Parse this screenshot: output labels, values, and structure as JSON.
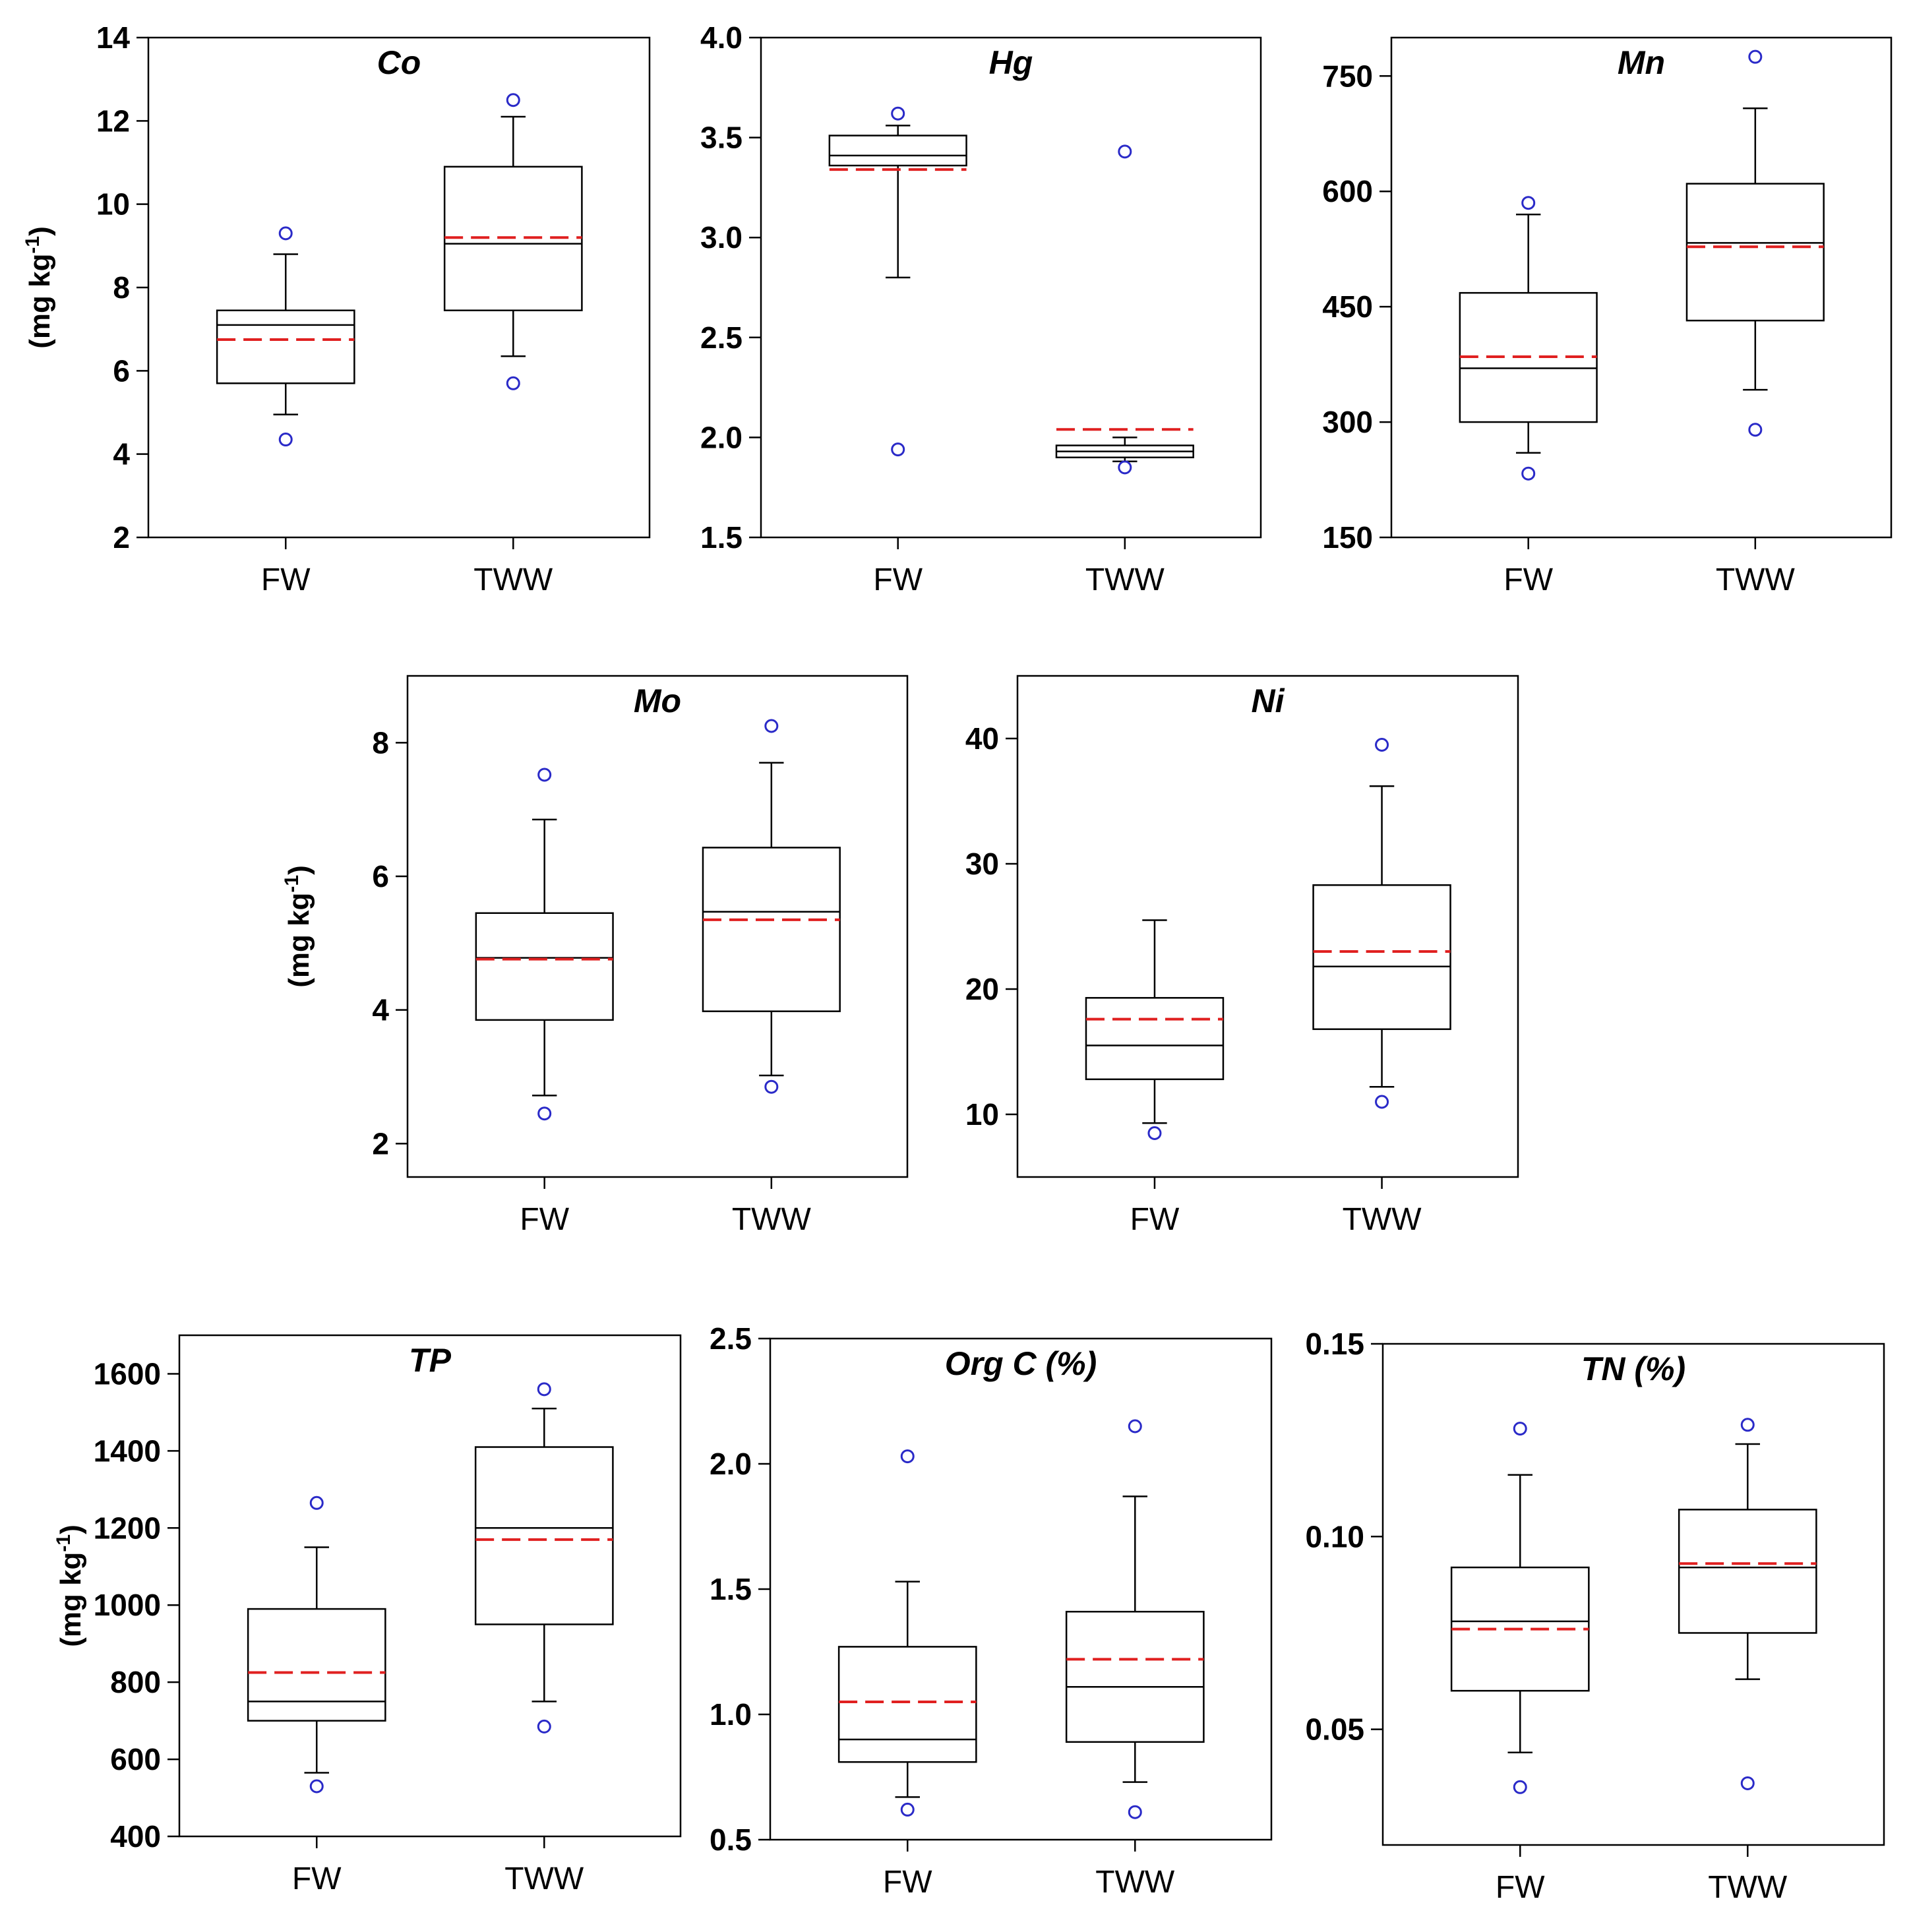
{
  "chart_data": [
    {
      "type": "box",
      "title": "Co",
      "ylabel": {
        "prefix": "(mg kg",
        "sup": "-1",
        "suffix": ")"
      },
      "ylim": [
        2,
        14
      ],
      "yticks": [
        "2",
        "4",
        "6",
        "8",
        "10",
        "12",
        "14"
      ],
      "ytick_values": [
        2,
        4,
        6,
        8,
        10,
        12,
        14
      ],
      "categories": [
        "FW",
        "TWW"
      ],
      "boxes": [
        {
          "q1": 5.7,
          "median": 7.1,
          "q3": 7.45,
          "mean": 6.75,
          "whisker_low": 4.95,
          "whisker_high": 8.8,
          "outliers": [
            4.35,
            9.3
          ]
        },
        {
          "q1": 7.45,
          "median": 9.05,
          "q3": 10.9,
          "mean": 9.2,
          "whisker_low": 6.35,
          "whisker_high": 12.1,
          "outliers": [
            5.7,
            12.5
          ]
        }
      ]
    },
    {
      "type": "box",
      "title": "Hg",
      "ylabel": null,
      "ylim": [
        1.5,
        4.0
      ],
      "yticks": [
        "1.5",
        "2.0",
        "2.5",
        "3.0",
        "3.5",
        "4.0"
      ],
      "ytick_values": [
        1.5,
        2.0,
        2.5,
        3.0,
        3.5,
        4.0
      ],
      "categories": [
        "FW",
        "TWW"
      ],
      "boxes": [
        {
          "q1": 3.36,
          "median": 3.41,
          "q3": 3.51,
          "mean": 3.34,
          "whisker_low": 2.8,
          "whisker_high": 3.56,
          "outliers": [
            1.94,
            3.62
          ]
        },
        {
          "q1": 1.9,
          "median": 1.93,
          "q3": 1.96,
          "mean": 2.04,
          "whisker_low": 1.88,
          "whisker_high": 2.0,
          "outliers": [
            1.85,
            3.43
          ]
        }
      ]
    },
    {
      "type": "box",
      "title": "Mn",
      "ylabel": null,
      "ylim": [
        150,
        800
      ],
      "yticks": [
        "150",
        "300",
        "450",
        "600",
        "750"
      ],
      "ytick_values": [
        150,
        300,
        450,
        600,
        750
      ],
      "categories": [
        "FW",
        "TWW"
      ],
      "boxes": [
        {
          "q1": 300,
          "median": 370,
          "q3": 468,
          "mean": 385,
          "whisker_low": 260,
          "whisker_high": 570,
          "outliers": [
            233,
            585
          ]
        },
        {
          "q1": 432,
          "median": 533,
          "q3": 610,
          "mean": 528,
          "whisker_low": 342,
          "whisker_high": 708,
          "outliers": [
            290,
            775
          ]
        }
      ]
    },
    {
      "type": "box",
      "title": "Mo",
      "ylabel": {
        "prefix": "(mg kg",
        "sup": "-1",
        "suffix": ")"
      },
      "ylim": [
        1.5,
        9.0
      ],
      "yticks": [
        "2",
        "4",
        "6",
        "8"
      ],
      "ytick_values": [
        2,
        4,
        6,
        8
      ],
      "categories": [
        "FW",
        "TWW"
      ],
      "boxes": [
        {
          "q1": 3.85,
          "median": 4.78,
          "q3": 5.45,
          "mean": 4.76,
          "whisker_low": 2.72,
          "whisker_high": 6.85,
          "outliers": [
            2.45,
            7.52
          ]
        },
        {
          "q1": 3.98,
          "median": 5.47,
          "q3": 6.43,
          "mean": 5.35,
          "whisker_low": 3.02,
          "whisker_high": 7.7,
          "outliers": [
            2.85,
            8.25
          ]
        }
      ]
    },
    {
      "type": "box",
      "title": "Ni",
      "ylabel": null,
      "ylim": [
        5,
        45
      ],
      "yticks": [
        "10",
        "20",
        "30",
        "40"
      ],
      "ytick_values": [
        10,
        20,
        30,
        40
      ],
      "categories": [
        "FW",
        "TWW"
      ],
      "boxes": [
        {
          "q1": 12.8,
          "median": 15.5,
          "q3": 19.3,
          "mean": 17.6,
          "whisker_low": 9.3,
          "whisker_high": 25.5,
          "outliers": [
            8.5
          ]
        },
        {
          "q1": 16.8,
          "median": 21.8,
          "q3": 28.3,
          "mean": 23.0,
          "whisker_low": 12.2,
          "whisker_high": 36.2,
          "outliers": [
            11.0,
            39.5
          ]
        }
      ]
    },
    {
      "type": "box",
      "title": "TP",
      "ylabel": {
        "prefix": "(mg kg",
        "sup": "-1",
        "suffix": ")"
      },
      "ylim": [
        400,
        1700
      ],
      "yticks": [
        "400",
        "600",
        "800",
        "1000",
        "1200",
        "1400",
        "1600"
      ],
      "ytick_values": [
        400,
        600,
        800,
        1000,
        1200,
        1400,
        1600
      ],
      "categories": [
        "FW",
        "TWW"
      ],
      "boxes": [
        {
          "q1": 700,
          "median": 750,
          "q3": 990,
          "mean": 825,
          "whisker_low": 565,
          "whisker_high": 1150,
          "outliers": [
            530,
            1265
          ]
        },
        {
          "q1": 950,
          "median": 1200,
          "q3": 1410,
          "mean": 1170,
          "whisker_low": 750,
          "whisker_high": 1510,
          "outliers": [
            685,
            1560
          ]
        }
      ]
    },
    {
      "type": "box",
      "title": "Org C (%)",
      "ylabel": null,
      "ylim": [
        0.5,
        2.5
      ],
      "yticks": [
        "0.5",
        "1.0",
        "1.5",
        "2.0",
        "2.5"
      ],
      "ytick_values": [
        0.5,
        1.0,
        1.5,
        2.0,
        2.5
      ],
      "categories": [
        "FW",
        "TWW"
      ],
      "boxes": [
        {
          "q1": 0.81,
          "median": 0.9,
          "q3": 1.27,
          "mean": 1.05,
          "whisker_low": 0.67,
          "whisker_high": 1.53,
          "outliers": [
            0.62,
            2.03
          ]
        },
        {
          "q1": 0.89,
          "median": 1.11,
          "q3": 1.41,
          "mean": 1.22,
          "whisker_low": 0.73,
          "whisker_high": 1.87,
          "outliers": [
            0.61,
            2.15
          ]
        }
      ]
    },
    {
      "type": "box",
      "title": "TN (%)",
      "ylabel": null,
      "ylim": [
        0.02,
        0.15
      ],
      "yticks": [
        "0.05",
        "0.10",
        "0.15"
      ],
      "ytick_values": [
        0.05,
        0.1,
        0.15
      ],
      "categories": [
        "FW",
        "TWW"
      ],
      "boxes": [
        {
          "q1": 0.06,
          "median": 0.078,
          "q3": 0.092,
          "mean": 0.076,
          "whisker_low": 0.044,
          "whisker_high": 0.116,
          "outliers": [
            0.035,
            0.128
          ]
        },
        {
          "q1": 0.075,
          "median": 0.092,
          "q3": 0.107,
          "mean": 0.093,
          "whisker_low": 0.063,
          "whisker_high": 0.124,
          "outliers": [
            0.036,
            0.129
          ]
        }
      ]
    }
  ],
  "style": {
    "median_color": "#000000",
    "mean_color": "#e02020",
    "outlier_color": "#2a2ac8",
    "axis_color": "#000000"
  }
}
